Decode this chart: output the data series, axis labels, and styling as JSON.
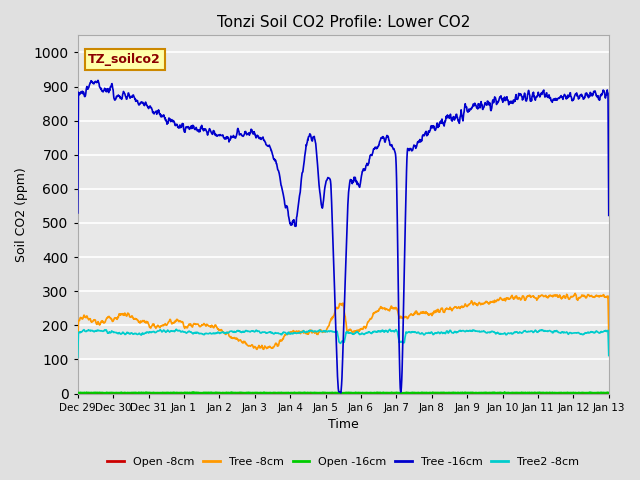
{
  "title": "Tonzi Soil CO2 Profile: Lower CO2",
  "xlabel": "Time",
  "ylabel": "Soil CO2 (ppm)",
  "ylim": [
    0,
    1050
  ],
  "yticks": [
    0,
    100,
    200,
    300,
    400,
    500,
    600,
    700,
    800,
    900,
    1000
  ],
  "background_color": "#e0e0e0",
  "plot_bg_color": "#e8e8e8",
  "grid_color": "white",
  "legend_label": "TZ_soilco2",
  "legend_box_color": "#ffffaa",
  "legend_box_edge": "#cc8800",
  "series": {
    "open_8cm": {
      "color": "#cc0000",
      "label": "Open -8cm",
      "lw": 1.2
    },
    "tree_8cm": {
      "color": "#ff9900",
      "label": "Tree -8cm",
      "lw": 1.2
    },
    "open_16cm": {
      "color": "#00cc00",
      "label": "Open -16cm",
      "lw": 1.5
    },
    "tree_16cm": {
      "color": "#0000cc",
      "label": "Tree -16cm",
      "lw": 1.2
    },
    "tree2_8cm": {
      "color": "#00cccc",
      "label": "Tree2 -8cm",
      "lw": 1.2
    }
  },
  "xtick_labels": [
    "Dec 29",
    "Dec 30",
    "Dec 31",
    "Jan 1",
    "Jan 2",
    "Jan 3",
    "Jan 4",
    "Jan 5",
    "Jan 6",
    "Jan 7",
    "Jan 8",
    "Jan 9",
    "Jan 10",
    "Jan 11",
    "Jan 12",
    "Jan 13"
  ],
  "xtick_positions": [
    0,
    1,
    2,
    3,
    4,
    5,
    6,
    7,
    8,
    9,
    10,
    11,
    12,
    13,
    14,
    15
  ]
}
